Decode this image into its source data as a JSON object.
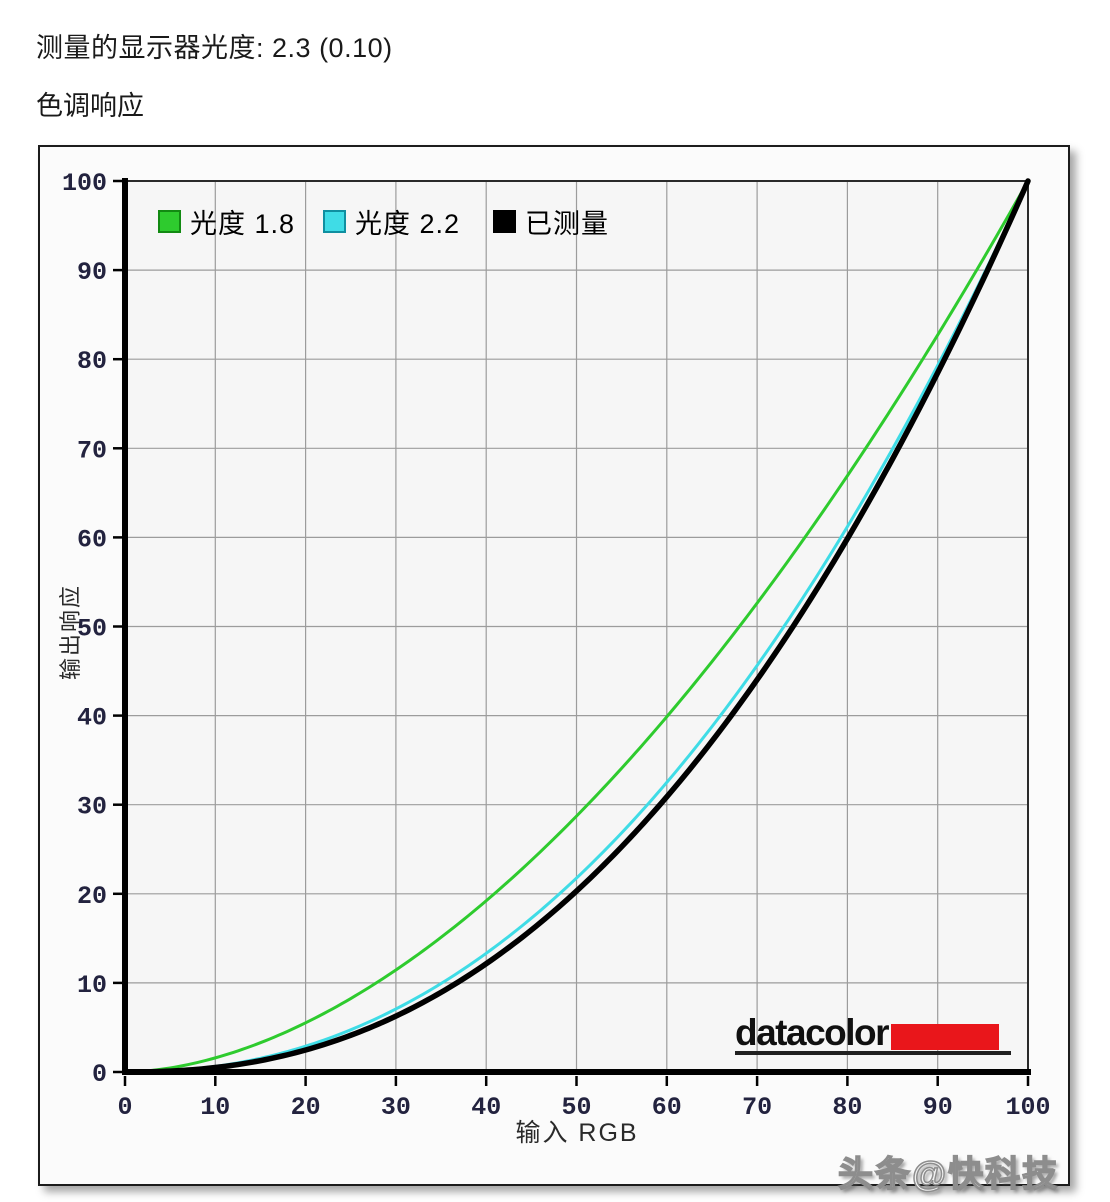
{
  "page": {
    "gamma_label": "测量的显示器光度:",
    "gamma_value": "2.3 (0.10)",
    "section_title": "色调响应",
    "watermark": "头条@快科技"
  },
  "logo": {
    "text": "datacolor",
    "bar_color": "#e9161b"
  },
  "chart_data": {
    "type": "line",
    "title": "色调响应",
    "xlabel": "输入 RGB",
    "ylabel": "输出响应",
    "xlim": [
      0,
      100
    ],
    "ylim": [
      0,
      100
    ],
    "xticks": [
      0,
      10,
      20,
      30,
      40,
      50,
      60,
      70,
      80,
      90,
      100
    ],
    "yticks": [
      0,
      10,
      20,
      30,
      40,
      50,
      60,
      70,
      80,
      90,
      100
    ],
    "grid": true,
    "grid_color": "#9c9c9c",
    "plot_bg": "#f6f6f6",
    "tick_label_color": "#23233f",
    "legend_position": "top-left",
    "x": [
      0,
      10,
      20,
      30,
      40,
      50,
      60,
      70,
      80,
      90,
      100
    ],
    "series": [
      {
        "key": "gamma-1.8",
        "name": "光度 1.8",
        "color": "#2ecb2e",
        "swatch_border": "#128a12",
        "gamma": 1.8,
        "line_width": 3,
        "y": [
          0,
          1.6,
          5.5,
          11.5,
          19.2,
          28.7,
          39.9,
          52.6,
          66.9,
          82.7,
          100
        ]
      },
      {
        "key": "gamma-2.2",
        "name": "光度 2.2",
        "color": "#3fdce6",
        "swatch_border": "#0f8fa0",
        "gamma": 2.2,
        "line_width": 3,
        "y": [
          0,
          0.6,
          2.9,
          7.1,
          13.3,
          21.8,
          32.5,
          45.6,
          61.2,
          79.3,
          100
        ]
      },
      {
        "key": "measured",
        "name": "已测量",
        "color": "#000000",
        "swatch_border": "#000000",
        "gamma": 2.3,
        "line_width": 5.5,
        "y": [
          0,
          0.5,
          2.5,
          6.3,
          12.2,
          20.3,
          30.9,
          44.0,
          59.9,
          78.5,
          100
        ]
      }
    ]
  }
}
